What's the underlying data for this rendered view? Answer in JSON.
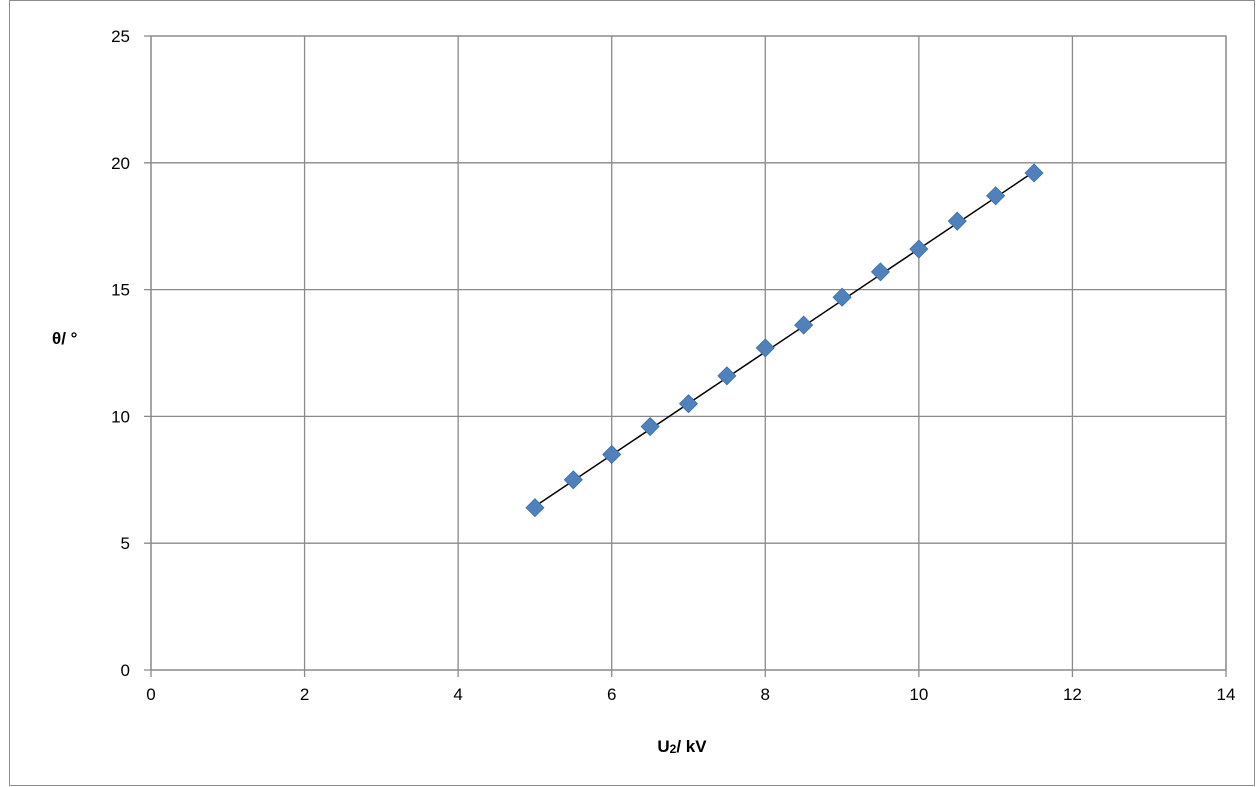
{
  "chart_data": {
    "type": "scatter",
    "title": "",
    "xlabel": "U",
    "xlabel_sub": "2",
    "xlabel_unit": "/ kV",
    "ylabel": "θ/ °",
    "xlim": [
      0,
      14
    ],
    "ylim": [
      0,
      25
    ],
    "x_ticks": [
      0,
      2,
      4,
      6,
      8,
      10,
      12,
      14
    ],
    "y_ticks": [
      0,
      5,
      10,
      15,
      20,
      25
    ],
    "grid": true,
    "legend": "none",
    "marker_color": "#4f81bd",
    "trendline_color": "#000000",
    "series": [
      {
        "x": [
          5,
          5.5,
          6,
          6.5,
          7,
          7.5,
          8,
          8.5,
          9,
          9.5,
          10,
          10.5,
          11,
          11.5
        ],
        "y": [
          6.4,
          7.5,
          8.5,
          9.6,
          10.5,
          11.6,
          12.7,
          13.6,
          14.7,
          15.7,
          16.6,
          17.7,
          18.7,
          19.6
        ]
      }
    ],
    "trendline": {
      "x": [
        5,
        11.5
      ],
      "y": [
        6.45,
        19.65
      ]
    }
  }
}
